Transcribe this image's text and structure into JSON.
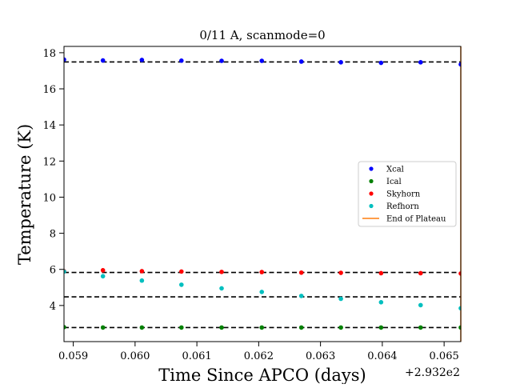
{
  "chart_data": {
    "type": "scatter",
    "title": "0/11 A, scanmode=0",
    "xlabel": "Time Since APCO (days)",
    "ylabel": "Temperature (K)",
    "x_offset_label": "+2.932e2",
    "xlim": [
      0.05885,
      0.06527
    ],
    "ylim": [
      2.0,
      18.35
    ],
    "xticks": [
      0.059,
      0.06,
      0.061,
      0.062,
      0.063,
      0.064,
      0.065
    ],
    "xtick_labels": [
      "0.059",
      "0.060",
      "0.061",
      "0.062",
      "0.063",
      "0.064",
      "0.065"
    ],
    "yticks": [
      4,
      6,
      8,
      10,
      12,
      14,
      16,
      18
    ],
    "ytick_labels": [
      "4",
      "6",
      "8",
      "10",
      "12",
      "14",
      "16",
      "18"
    ],
    "x": [
      0.05885,
      0.05948,
      0.06011,
      0.06075,
      0.0614,
      0.06205,
      0.06269,
      0.06333,
      0.06398,
      0.06462,
      0.06527
    ],
    "series": [
      {
        "name": "Xcal",
        "color": "#0000ff",
        "values": [
          17.62,
          17.57,
          17.6,
          17.56,
          17.55,
          17.55,
          17.51,
          17.47,
          17.44,
          17.47,
          17.35
        ]
      },
      {
        "name": "Ical",
        "color": "#008000",
        "values": [
          2.8,
          2.78,
          2.78,
          2.78,
          2.78,
          2.78,
          2.78,
          2.78,
          2.78,
          2.78,
          2.78
        ]
      },
      {
        "name": "Skyhorn",
        "color": "#ff0000",
        "values": [
          5.9,
          5.95,
          5.9,
          5.88,
          5.86,
          5.85,
          5.82,
          5.81,
          5.79,
          5.79,
          5.77
        ]
      },
      {
        "name": "Refhorn",
        "color": "#00bfbf",
        "values": [
          5.88,
          5.62,
          5.38,
          5.15,
          4.95,
          4.75,
          4.53,
          4.37,
          4.18,
          4.02,
          3.85
        ]
      }
    ],
    "reference_lines": [
      {
        "style": "dashed",
        "color": "#000000",
        "y": 17.49
      },
      {
        "style": "dashed",
        "color": "#000000",
        "y": 5.83
      },
      {
        "style": "dashed",
        "color": "#000000",
        "y": 4.48
      },
      {
        "style": "dashed",
        "color": "#000000",
        "y": 2.78
      }
    ],
    "vertical_line": {
      "name": "End of Plateau",
      "color": "#ff7f0e",
      "x": 0.06527
    },
    "legend": {
      "placement": "center-right",
      "entries": [
        {
          "label": "Xcal",
          "color": "#0000ff",
          "marker": "dot"
        },
        {
          "label": "Ical",
          "color": "#008000",
          "marker": "dot"
        },
        {
          "label": "Skyhorn",
          "color": "#ff0000",
          "marker": "dot"
        },
        {
          "label": "Refhorn",
          "color": "#00bfbf",
          "marker": "dot"
        },
        {
          "label": "End of Plateau",
          "color": "#ff7f0e",
          "marker": "line"
        }
      ]
    },
    "grid": false
  }
}
